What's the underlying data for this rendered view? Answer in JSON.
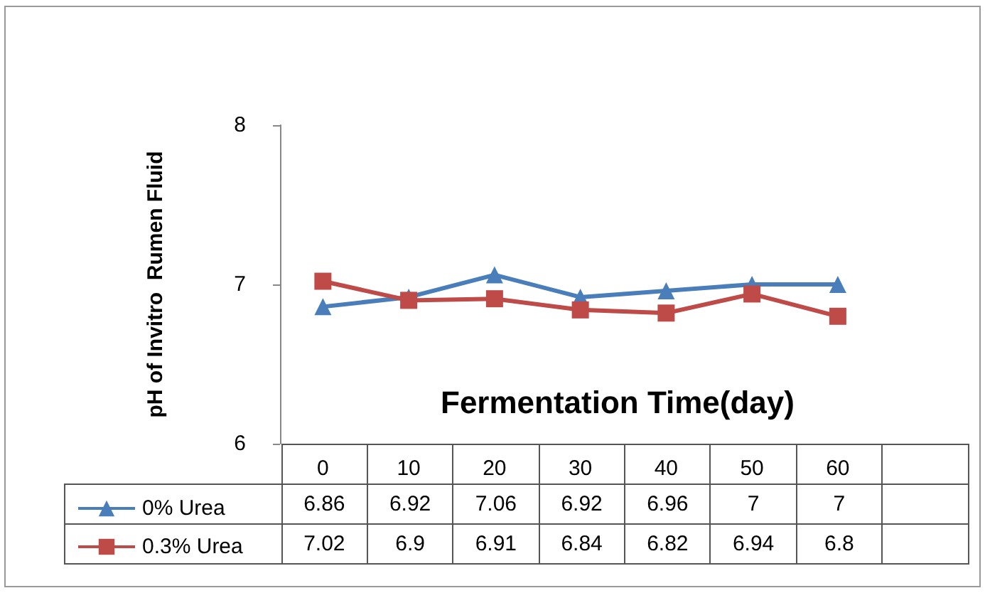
{
  "chart_data": {
    "type": "line",
    "xlabel": "Fermentation Time(day)",
    "ylabel": "pH of Invitro  Rumen Fluid",
    "categories": [
      "0",
      "10",
      "20",
      "30",
      "40",
      "50",
      "60",
      null
    ],
    "series": [
      {
        "name": "0% Urea",
        "color": "#4a7ebb",
        "marker": "triangle",
        "values": [
          6.86,
          6.92,
          7.06,
          6.92,
          6.96,
          7,
          7,
          null
        ]
      },
      {
        "name": "0.3% Urea",
        "color": "#be4b48",
        "marker": "square",
        "values": [
          7.02,
          6.9,
          6.91,
          6.84,
          6.82,
          6.94,
          6.8,
          null
        ]
      }
    ],
    "ylim": [
      6,
      8
    ],
    "yticks": [
      6,
      7,
      8
    ],
    "grid": false,
    "legend": "bottom left",
    "data_labels": true
  }
}
